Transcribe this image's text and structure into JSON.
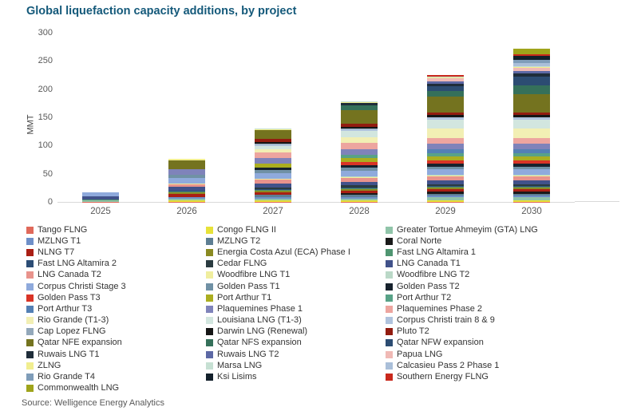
{
  "title": "Global liquefaction capacity additions, by project",
  "source": "Source: Welligence Energy Analytics",
  "colors": {
    "title_text": "#14597A",
    "axis_text": "#595959",
    "legend_text": "#333333",
    "axis_line": "#D9D9D9"
  },
  "chart_data": {
    "type": "bar",
    "stacked": true,
    "title": "Global liquefaction capacity additions, by project",
    "xlabel": "",
    "ylabel": "MMT",
    "ylim": [
      0,
      300
    ],
    "yticks": [
      0,
      50,
      100,
      150,
      200,
      250,
      300
    ],
    "grid": false,
    "legend_position": "bottom",
    "categories": [
      "2025",
      "2026",
      "2027",
      "2028",
      "2029",
      "2030"
    ],
    "totals_estimated": [
      17,
      77,
      130,
      178,
      225,
      272
    ],
    "series": [
      {
        "name": "Tango FLNG",
        "color": "#E0695A",
        "values": [
          0.6,
          0.6,
          0.6,
          0.6,
          0.6,
          0.6
        ]
      },
      {
        "name": "Congo FLNG II",
        "color": "#E7E239",
        "values": [
          0,
          2.4,
          2.4,
          2.4,
          2.4,
          2.4
        ]
      },
      {
        "name": "Greater Tortue Ahmeyim (GTA) LNG",
        "color": "#90C4A9",
        "values": [
          2.5,
          2.5,
          2.5,
          2.5,
          5,
          5
        ]
      },
      {
        "name": "MZLNG T1",
        "color": "#6E8FC8",
        "values": [
          0,
          3.4,
          3.4,
          3.4,
          3.4,
          3.4
        ]
      },
      {
        "name": "MZLNG T2",
        "color": "#5D7E93",
        "values": [
          0,
          0,
          3.4,
          3.4,
          3.4,
          3.4
        ]
      },
      {
        "name": "Coral Norte",
        "color": "#1A1A1A",
        "values": [
          0,
          0,
          0,
          3.4,
          3.4,
          3.4
        ]
      },
      {
        "name": "NLNG T7",
        "color": "#AA1F14",
        "values": [
          0,
          4.7,
          4.7,
          4.7,
          4.7,
          4.7
        ]
      },
      {
        "name": "Energia Costa Azul (ECA) Phase I",
        "color": "#8A8A22",
        "values": [
          0,
          3,
          3,
          3,
          3,
          3
        ]
      },
      {
        "name": "Fast LNG Altamira 1",
        "color": "#4F9571",
        "values": [
          1.4,
          1.4,
          1.4,
          1.4,
          1.4,
          1.4
        ]
      },
      {
        "name": "Fast LNG Altamira 2",
        "color": "#2C4D75",
        "values": [
          0,
          1.4,
          1.4,
          1.4,
          1.4,
          1.4
        ]
      },
      {
        "name": "Cedar FLNG",
        "color": "#2A3B40",
        "values": [
          0,
          0,
          3,
          3,
          3,
          3
        ]
      },
      {
        "name": "LNG Canada T1",
        "color": "#41528A",
        "values": [
          5,
          7,
          7,
          7,
          7,
          7
        ]
      },
      {
        "name": "LNG Canada T2",
        "color": "#E8938C",
        "values": [
          0,
          5,
          7,
          7,
          7,
          7
        ]
      },
      {
        "name": "Woodfibre LNG T1",
        "color": "#F0EE9E",
        "values": [
          0,
          1.1,
          1.1,
          1.1,
          1.1,
          1.1
        ]
      },
      {
        "name": "Woodfibre LNG T2",
        "color": "#BAD8C7",
        "values": [
          0,
          0,
          0,
          1.1,
          1.1,
          1.1
        ]
      },
      {
        "name": "Corpus Christi Stage 3",
        "color": "#8FAADC",
        "values": [
          7.5,
          10,
          10,
          10,
          10,
          10
        ]
      },
      {
        "name": "Golden Pass T1",
        "color": "#7091A5",
        "values": [
          0,
          5.2,
          5.2,
          5.2,
          5.2,
          5.2
        ]
      },
      {
        "name": "Golden Pass T2",
        "color": "#17222D",
        "values": [
          0,
          0,
          5.2,
          5.2,
          5.2,
          5.2
        ]
      },
      {
        "name": "Golden Pass T3",
        "color": "#D93426",
        "values": [
          0,
          0,
          0,
          5.2,
          5.2,
          5.2
        ]
      },
      {
        "name": "Port Arthur T1",
        "color": "#ABAE20",
        "values": [
          0,
          0,
          6.7,
          6.7,
          6.7,
          6.7
        ]
      },
      {
        "name": "Port Arthur T2",
        "color": "#58A287",
        "values": [
          0,
          0,
          0,
          6.7,
          6.7,
          6.7
        ]
      },
      {
        "name": "Port Arthur T3",
        "color": "#5380B4",
        "values": [
          0,
          0,
          0,
          0,
          6.7,
          6.7
        ]
      },
      {
        "name": "Plaquemines Phase 1",
        "color": "#7F83BA",
        "values": [
          0,
          9.9,
          9.9,
          9.9,
          9.9,
          9.9
        ]
      },
      {
        "name": "Plaquemines Phase 2",
        "color": "#EDA59F",
        "values": [
          0,
          0,
          10.1,
          10.1,
          10.1,
          10.1
        ]
      },
      {
        "name": "Rio Grande (T1-3)",
        "color": "#F2EFB4",
        "values": [
          0,
          0,
          5.4,
          10.8,
          16.2,
          16.2
        ]
      },
      {
        "name": "Louisiana LNG (T1-3)",
        "color": "#D2E6DF",
        "values": [
          0,
          0,
          5.5,
          11,
          16.5,
          16.5
        ]
      },
      {
        "name": "Corpus Christi train 8 & 9",
        "color": "#B0C3DD",
        "values": [
          0,
          0,
          3.3,
          3.3,
          3.3,
          3.3
        ]
      },
      {
        "name": "Cap Lopez FLNG",
        "color": "#93A8BA",
        "values": [
          0,
          0.8,
          0.8,
          0.8,
          0.8,
          0.8
        ]
      },
      {
        "name": "Darwin LNG (Renewal)",
        "color": "#161616",
        "values": [
          0,
          0,
          3.7,
          3.7,
          3.7,
          3.7
        ]
      },
      {
        "name": "Pluto T2",
        "color": "#921C10",
        "values": [
          0,
          0,
          5,
          5,
          5,
          5
        ]
      },
      {
        "name": "Qatar NFE expansion",
        "color": "#74731F",
        "values": [
          0,
          16,
          16,
          24,
          28,
          32
        ]
      },
      {
        "name": "Qatar NFS expansion",
        "color": "#35705A",
        "values": [
          0,
          0,
          0,
          8,
          10,
          16
        ]
      },
      {
        "name": "Qatar NFW expansion",
        "color": "#2C4C72",
        "values": [
          0,
          0,
          0,
          0,
          8,
          16
        ]
      },
      {
        "name": "Ruwais LNG T1",
        "color": "#1F2D3A",
        "values": [
          0,
          0,
          0,
          4.8,
          4.8,
          4.8
        ]
      },
      {
        "name": "Ruwais LNG T2",
        "color": "#5C68A5",
        "values": [
          0,
          0,
          0,
          0,
          4.8,
          4.8
        ]
      },
      {
        "name": "Papua LNG",
        "color": "#F0B9B5",
        "values": [
          0,
          0,
          0,
          0,
          5.6,
          5.6
        ]
      },
      {
        "name": "ZLNG",
        "color": "#F1EE8F",
        "values": [
          0,
          1.5,
          1.5,
          1.5,
          1.5,
          1.5
        ]
      },
      {
        "name": "Marsa LNG",
        "color": "#C6E0D3",
        "values": [
          0,
          1,
          1,
          1,
          1,
          1
        ]
      },
      {
        "name": "Calcasieu Pass 2 Phase 1",
        "color": "#AABFD9",
        "values": [
          0,
          0,
          0,
          0,
          0,
          5.5
        ]
      },
      {
        "name": "Rio Grande T4",
        "color": "#7F9DB9",
        "values": [
          0,
          0,
          0,
          0,
          0,
          5.4
        ]
      },
      {
        "name": "Ksi Lisims",
        "color": "#13202B",
        "values": [
          0,
          0,
          0,
          0,
          0,
          8
        ]
      },
      {
        "name": "Southern Energy FLNG",
        "color": "#C9291C",
        "values": [
          0,
          0,
          0,
          0,
          2.5,
          2.5
        ]
      },
      {
        "name": "Commonwealth LNG",
        "color": "#9FA41B",
        "values": [
          0,
          0,
          0,
          0,
          0,
          9.5
        ]
      }
    ]
  }
}
